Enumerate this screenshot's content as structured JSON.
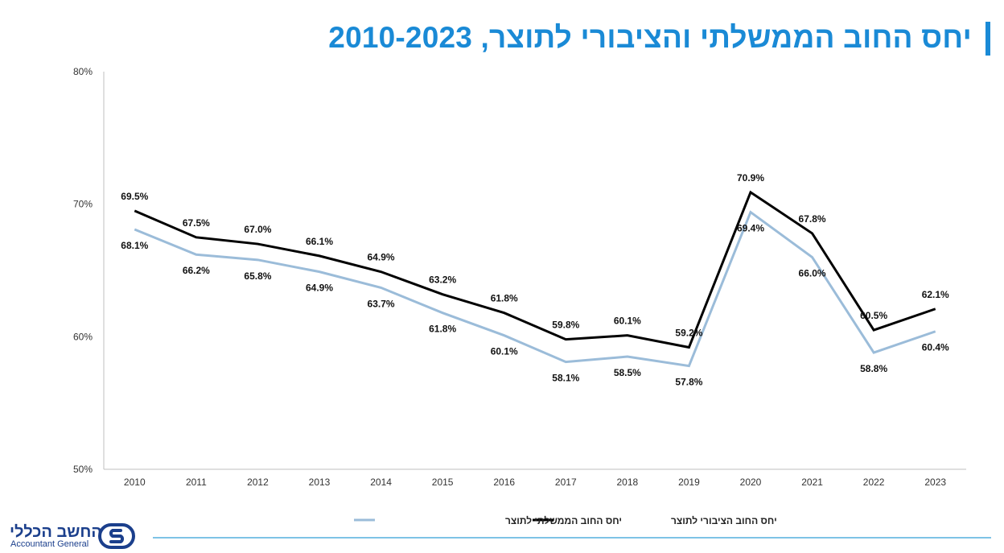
{
  "header": {
    "title": "יחס החוב הממשלתי והציבורי לתוצר, 2010-2023"
  },
  "footer": {
    "logo_he": "החשב הכללי",
    "logo_en": "Accountant General",
    "logo_icon": "accountant-general-logo-icon"
  },
  "colors": {
    "title": "#1a8ad6",
    "public_series": "#000000",
    "government_series": "#9bbcd9",
    "footer_line": "#7ec3e6",
    "logo": "#1b3f8c"
  },
  "chart_data": {
    "type": "line",
    "x": [
      "2010",
      "2011",
      "2012",
      "2013",
      "2014",
      "2015",
      "2016",
      "2017",
      "2018",
      "2019",
      "2020",
      "2021",
      "2022",
      "2023"
    ],
    "y_ticks": [
      "50%",
      "60%",
      "70%",
      "80%"
    ],
    "ylim": [
      50,
      80
    ],
    "grid": false,
    "legend_position": "bottom",
    "series": [
      {
        "name": "יחס החוב הציבורי לתוצר",
        "values": [
          69.5,
          67.5,
          67.0,
          66.1,
          64.9,
          63.2,
          61.8,
          59.8,
          60.1,
          59.2,
          70.9,
          67.8,
          60.5,
          62.1
        ],
        "labels": [
          "69.5%",
          "67.5%",
          "67.0%",
          "66.1%",
          "64.9%",
          "63.2%",
          "61.8%",
          "59.8%",
          "60.1%",
          "59.2%",
          "70.9%",
          "67.8%",
          "60.5%",
          "62.1%"
        ]
      },
      {
        "name": "יחס החוב הממשלתי לתוצר",
        "values": [
          68.1,
          66.2,
          65.8,
          64.9,
          63.7,
          61.8,
          60.1,
          58.1,
          58.5,
          57.8,
          69.4,
          66.0,
          58.8,
          60.4
        ],
        "labels": [
          "68.1%",
          "66.2%",
          "65.8%",
          "64.9%",
          "63.7%",
          "61.8%",
          "60.1%",
          "58.1%",
          "58.5%",
          "57.8%",
          "69.4%",
          "66.0%",
          "58.8%",
          "60.4%"
        ]
      }
    ]
  }
}
